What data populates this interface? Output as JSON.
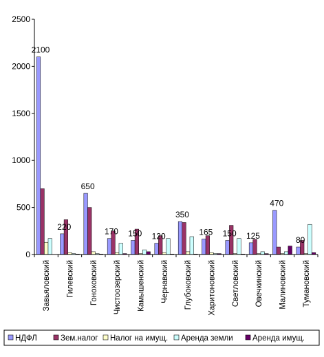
{
  "chart_data": {
    "type": "bar",
    "categories": [
      "Завьяловский",
      "Гилевский",
      "Гоноховский",
      "Чистоозерский",
      "Камышенский",
      "Чернавский",
      "Глубоковский",
      "Харитоновский",
      "Светловский",
      "Овечкинский",
      "Малиновский",
      "Тумановский"
    ],
    "series": [
      {
        "name": "НДФЛ",
        "color": "#9999ff",
        "values": [
          2100,
          220,
          650,
          170,
          150,
          120,
          350,
          165,
          150,
          125,
          470,
          80
        ]
      },
      {
        "name": "Зем.налог",
        "color": "#993366",
        "values": [
          700,
          370,
          500,
          250,
          270,
          200,
          340,
          200,
          310,
          160,
          80,
          150
        ]
      },
      {
        "name": "Налог на имущ.",
        "color": "#ffffcc",
        "values": [
          130,
          20,
          30,
          20,
          10,
          20,
          30,
          20,
          10,
          10,
          10,
          10
        ]
      },
      {
        "name": "Аренда земли",
        "color": "#ccffff",
        "values": [
          170,
          10,
          10,
          120,
          50,
          170,
          190,
          10,
          170,
          30,
          30,
          320
        ]
      },
      {
        "name": "Аренда имущ.",
        "color": "#660066",
        "values": [
          0,
          5,
          5,
          10,
          30,
          5,
          5,
          10,
          5,
          10,
          90,
          20
        ]
      }
    ],
    "data_labels": [
      "2100",
      "220",
      "650",
      "170",
      "150",
      "120",
      "350",
      "165",
      "150",
      "125",
      "470",
      "80"
    ],
    "y_ticks": [
      "0",
      "500",
      "1000",
      "1500",
      "2000",
      "2500"
    ],
    "ylim": [
      0,
      2500
    ],
    "grid": false,
    "legend_position": "bottom"
  }
}
